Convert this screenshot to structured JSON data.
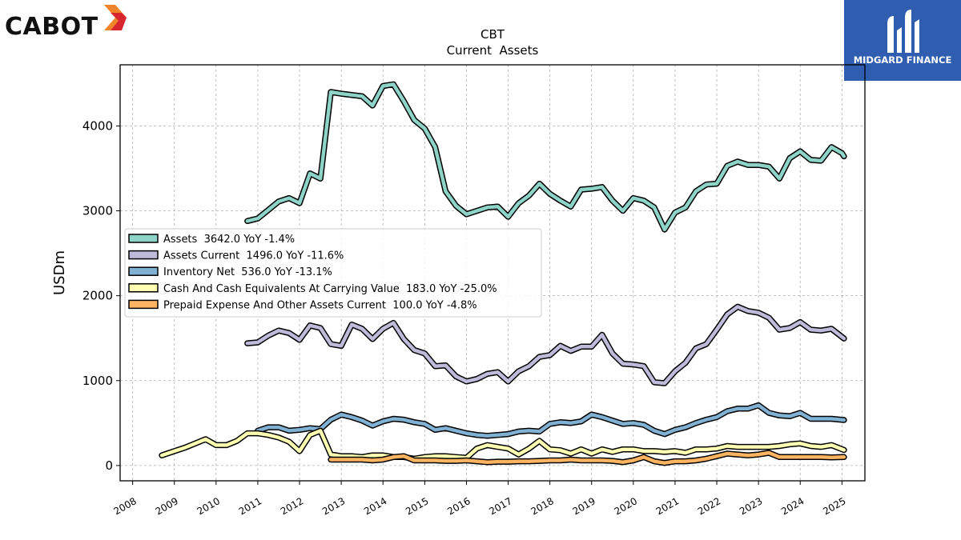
{
  "header": {
    "brand_logo_text": "CABOT",
    "corner_logo_text": "MIDGARD FINANCE"
  },
  "chart_data": {
    "type": "line",
    "title": "CBT",
    "subtitle": "Current  Assets",
    "xlabel": "",
    "ylabel": "USDm",
    "xlim": [
      2007.7,
      2025.55
    ],
    "ylim": [
      -180,
      4720
    ],
    "x_ticks": [
      "2008",
      "2009",
      "2010",
      "2011",
      "2012",
      "2013",
      "2014",
      "2015",
      "2016",
      "2017",
      "2018",
      "2019",
      "2020",
      "2021",
      "2022",
      "2023",
      "2024",
      "2025"
    ],
    "y_ticks": [
      0,
      1000,
      2000,
      3000,
      4000
    ],
    "grid": true,
    "legend_position": "center-left",
    "series": [
      {
        "name": "Assets  3642.0 YoY -1.4%",
        "color": "#8dd3c7",
        "points": [
          [
            2010.75,
            2880
          ],
          [
            2011.0,
            2910
          ],
          [
            2011.25,
            3010
          ],
          [
            2011.5,
            3110
          ],
          [
            2011.75,
            3150
          ],
          [
            2012.0,
            3090
          ],
          [
            2012.25,
            3440
          ],
          [
            2012.5,
            3380
          ],
          [
            2012.75,
            4400
          ],
          [
            2013.0,
            4380
          ],
          [
            2013.5,
            4350
          ],
          [
            2013.75,
            4240
          ],
          [
            2014.0,
            4470
          ],
          [
            2014.25,
            4490
          ],
          [
            2014.5,
            4290
          ],
          [
            2014.75,
            4070
          ],
          [
            2015.0,
            3970
          ],
          [
            2015.25,
            3750
          ],
          [
            2015.5,
            3230
          ],
          [
            2015.75,
            3060
          ],
          [
            2016.0,
            2960
          ],
          [
            2016.5,
            3040
          ],
          [
            2016.75,
            3050
          ],
          [
            2017.0,
            2930
          ],
          [
            2017.25,
            3090
          ],
          [
            2017.5,
            3180
          ],
          [
            2017.75,
            3320
          ],
          [
            2018.0,
            3200
          ],
          [
            2018.25,
            3120
          ],
          [
            2018.5,
            3050
          ],
          [
            2018.75,
            3250
          ],
          [
            2019.0,
            3260
          ],
          [
            2019.25,
            3280
          ],
          [
            2019.5,
            3120
          ],
          [
            2019.75,
            3000
          ],
          [
            2020.0,
            3150
          ],
          [
            2020.25,
            3120
          ],
          [
            2020.5,
            3040
          ],
          [
            2020.75,
            2780
          ],
          [
            2021.0,
            2980
          ],
          [
            2021.25,
            3040
          ],
          [
            2021.5,
            3230
          ],
          [
            2021.75,
            3310
          ],
          [
            2022.0,
            3320
          ],
          [
            2022.25,
            3530
          ],
          [
            2022.5,
            3580
          ],
          [
            2022.75,
            3540
          ],
          [
            2023.0,
            3540
          ],
          [
            2023.25,
            3520
          ],
          [
            2023.5,
            3380
          ],
          [
            2023.75,
            3620
          ],
          [
            2024.0,
            3700
          ],
          [
            2024.25,
            3600
          ],
          [
            2024.5,
            3590
          ],
          [
            2024.75,
            3750
          ],
          [
            2025.0,
            3680
          ],
          [
            2025.05,
            3642
          ]
        ]
      },
      {
        "name": "Assets Current  1496.0 YoY -11.6%",
        "color": "#bebada",
        "points": [
          [
            2010.75,
            1440
          ],
          [
            2011.0,
            1450
          ],
          [
            2011.25,
            1530
          ],
          [
            2011.5,
            1590
          ],
          [
            2011.75,
            1560
          ],
          [
            2012.0,
            1480
          ],
          [
            2012.25,
            1650
          ],
          [
            2012.5,
            1620
          ],
          [
            2012.75,
            1430
          ],
          [
            2013.0,
            1410
          ],
          [
            2013.25,
            1660
          ],
          [
            2013.5,
            1610
          ],
          [
            2013.75,
            1490
          ],
          [
            2014.0,
            1610
          ],
          [
            2014.25,
            1680
          ],
          [
            2014.5,
            1490
          ],
          [
            2014.75,
            1360
          ],
          [
            2015.0,
            1320
          ],
          [
            2015.25,
            1170
          ],
          [
            2015.5,
            1180
          ],
          [
            2015.75,
            1050
          ],
          [
            2016.0,
            990
          ],
          [
            2016.25,
            1020
          ],
          [
            2016.5,
            1080
          ],
          [
            2016.75,
            1100
          ],
          [
            2017.0,
            990
          ],
          [
            2017.25,
            1110
          ],
          [
            2017.5,
            1170
          ],
          [
            2017.75,
            1280
          ],
          [
            2018.0,
            1300
          ],
          [
            2018.25,
            1410
          ],
          [
            2018.5,
            1350
          ],
          [
            2018.75,
            1400
          ],
          [
            2019.0,
            1400
          ],
          [
            2019.25,
            1540
          ],
          [
            2019.5,
            1320
          ],
          [
            2019.75,
            1200
          ],
          [
            2020.0,
            1190
          ],
          [
            2020.25,
            1170
          ],
          [
            2020.5,
            980
          ],
          [
            2020.75,
            970
          ],
          [
            2021.0,
            1110
          ],
          [
            2021.25,
            1210
          ],
          [
            2021.5,
            1380
          ],
          [
            2021.75,
            1430
          ],
          [
            2022.0,
            1600
          ],
          [
            2022.25,
            1780
          ],
          [
            2022.5,
            1870
          ],
          [
            2022.75,
            1820
          ],
          [
            2023.0,
            1800
          ],
          [
            2023.25,
            1740
          ],
          [
            2023.5,
            1600
          ],
          [
            2023.75,
            1620
          ],
          [
            2024.0,
            1690
          ],
          [
            2024.25,
            1600
          ],
          [
            2024.5,
            1590
          ],
          [
            2024.75,
            1610
          ],
          [
            2025.05,
            1496
          ]
        ]
      },
      {
        "name": "Inventory Net  536.0 YoY -13.1%",
        "color": "#80b1d3",
        "points": [
          [
            2011.0,
            410
          ],
          [
            2011.25,
            450
          ],
          [
            2011.5,
            450
          ],
          [
            2011.75,
            410
          ],
          [
            2012.0,
            420
          ],
          [
            2012.25,
            440
          ],
          [
            2012.5,
            430
          ],
          [
            2012.75,
            540
          ],
          [
            2013.0,
            600
          ],
          [
            2013.25,
            570
          ],
          [
            2013.5,
            530
          ],
          [
            2013.75,
            470
          ],
          [
            2014.0,
            520
          ],
          [
            2014.25,
            550
          ],
          [
            2014.5,
            540
          ],
          [
            2014.75,
            510
          ],
          [
            2015.0,
            490
          ],
          [
            2015.25,
            420
          ],
          [
            2015.5,
            440
          ],
          [
            2015.75,
            410
          ],
          [
            2016.0,
            380
          ],
          [
            2016.25,
            360
          ],
          [
            2016.5,
            350
          ],
          [
            2016.75,
            360
          ],
          [
            2017.0,
            370
          ],
          [
            2017.25,
            400
          ],
          [
            2017.5,
            410
          ],
          [
            2017.75,
            400
          ],
          [
            2018.0,
            490
          ],
          [
            2018.25,
            510
          ],
          [
            2018.5,
            500
          ],
          [
            2018.75,
            520
          ],
          [
            2019.0,
            600
          ],
          [
            2019.25,
            570
          ],
          [
            2019.5,
            530
          ],
          [
            2019.75,
            490
          ],
          [
            2020.0,
            500
          ],
          [
            2020.25,
            480
          ],
          [
            2020.5,
            410
          ],
          [
            2020.75,
            370
          ],
          [
            2021.0,
            420
          ],
          [
            2021.25,
            450
          ],
          [
            2021.5,
            500
          ],
          [
            2021.75,
            540
          ],
          [
            2022.0,
            570
          ],
          [
            2022.25,
            640
          ],
          [
            2022.5,
            670
          ],
          [
            2022.75,
            670
          ],
          [
            2023.0,
            710
          ],
          [
            2023.25,
            620
          ],
          [
            2023.5,
            590
          ],
          [
            2023.75,
            580
          ],
          [
            2024.0,
            620
          ],
          [
            2024.25,
            550
          ],
          [
            2024.5,
            550
          ],
          [
            2024.75,
            550
          ],
          [
            2025.05,
            536
          ]
        ]
      },
      {
        "name": "Cash And Cash Equivalents At Carrying Value  183.0 YoY -25.0%",
        "color": "#ffffb3",
        "points": [
          [
            2008.7,
            120
          ],
          [
            2009.0,
            170
          ],
          [
            2009.25,
            210
          ],
          [
            2009.5,
            260
          ],
          [
            2009.75,
            310
          ],
          [
            2010.0,
            240
          ],
          [
            2010.25,
            240
          ],
          [
            2010.5,
            290
          ],
          [
            2010.75,
            380
          ],
          [
            2011.0,
            380
          ],
          [
            2011.25,
            360
          ],
          [
            2011.5,
            330
          ],
          [
            2011.75,
            280
          ],
          [
            2012.0,
            170
          ],
          [
            2012.25,
            360
          ],
          [
            2012.5,
            410
          ],
          [
            2012.75,
            130
          ],
          [
            2013.0,
            110
          ],
          [
            2013.25,
            110
          ],
          [
            2013.5,
            100
          ],
          [
            2013.75,
            120
          ],
          [
            2014.0,
            120
          ],
          [
            2014.25,
            100
          ],
          [
            2014.5,
            100
          ],
          [
            2014.75,
            80
          ],
          [
            2015.0,
            100
          ],
          [
            2015.25,
            110
          ],
          [
            2015.5,
            110
          ],
          [
            2015.75,
            100
          ],
          [
            2016.0,
            90
          ],
          [
            2016.25,
            200
          ],
          [
            2016.5,
            240
          ],
          [
            2016.75,
            220
          ],
          [
            2017.0,
            200
          ],
          [
            2017.25,
            130
          ],
          [
            2017.5,
            200
          ],
          [
            2017.75,
            290
          ],
          [
            2018.0,
            190
          ],
          [
            2018.25,
            180
          ],
          [
            2018.5,
            140
          ],
          [
            2018.75,
            190
          ],
          [
            2019.0,
            140
          ],
          [
            2019.25,
            190
          ],
          [
            2019.5,
            160
          ],
          [
            2019.75,
            190
          ],
          [
            2020.0,
            190
          ],
          [
            2020.25,
            170
          ],
          [
            2020.5,
            170
          ],
          [
            2020.75,
            160
          ],
          [
            2021.0,
            170
          ],
          [
            2021.25,
            150
          ],
          [
            2021.5,
            190
          ],
          [
            2021.75,
            190
          ],
          [
            2022.0,
            200
          ],
          [
            2022.25,
            230
          ],
          [
            2022.5,
            220
          ],
          [
            2022.75,
            220
          ],
          [
            2023.0,
            220
          ],
          [
            2023.25,
            220
          ],
          [
            2023.5,
            230
          ],
          [
            2023.75,
            250
          ],
          [
            2024.0,
            260
          ],
          [
            2024.25,
            230
          ],
          [
            2024.5,
            220
          ],
          [
            2024.75,
            240
          ],
          [
            2025.05,
            183
          ]
        ]
      },
      {
        "name": "Prepaid Expense And Other Assets Current  100.0 YoY -4.8%",
        "color": "#fdb462",
        "points": [
          [
            2012.75,
            70
          ],
          [
            2013.0,
            70
          ],
          [
            2013.25,
            70
          ],
          [
            2013.5,
            70
          ],
          [
            2013.75,
            60
          ],
          [
            2014.0,
            70
          ],
          [
            2014.25,
            100
          ],
          [
            2014.5,
            110
          ],
          [
            2014.75,
            60
          ],
          [
            2015.0,
            60
          ],
          [
            2015.25,
            60
          ],
          [
            2015.5,
            55
          ],
          [
            2015.75,
            55
          ],
          [
            2016.0,
            60
          ],
          [
            2016.25,
            50
          ],
          [
            2016.5,
            40
          ],
          [
            2016.75,
            45
          ],
          [
            2017.0,
            45
          ],
          [
            2017.25,
            50
          ],
          [
            2017.5,
            50
          ],
          [
            2017.75,
            55
          ],
          [
            2018.0,
            60
          ],
          [
            2018.25,
            60
          ],
          [
            2018.5,
            70
          ],
          [
            2018.75,
            60
          ],
          [
            2019.0,
            60
          ],
          [
            2019.25,
            60
          ],
          [
            2019.5,
            55
          ],
          [
            2019.75,
            40
          ],
          [
            2020.0,
            60
          ],
          [
            2020.25,
            100
          ],
          [
            2020.5,
            50
          ],
          [
            2020.75,
            30
          ],
          [
            2021.0,
            50
          ],
          [
            2021.25,
            50
          ],
          [
            2021.5,
            60
          ],
          [
            2021.75,
            80
          ],
          [
            2022.0,
            110
          ],
          [
            2022.25,
            140
          ],
          [
            2022.5,
            130
          ],
          [
            2022.75,
            120
          ],
          [
            2023.0,
            130
          ],
          [
            2023.25,
            150
          ],
          [
            2023.5,
            100
          ],
          [
            2023.75,
            100
          ],
          [
            2024.0,
            100
          ],
          [
            2024.25,
            100
          ],
          [
            2024.5,
            100
          ],
          [
            2024.75,
            95
          ],
          [
            2025.05,
            100
          ]
        ]
      }
    ]
  }
}
